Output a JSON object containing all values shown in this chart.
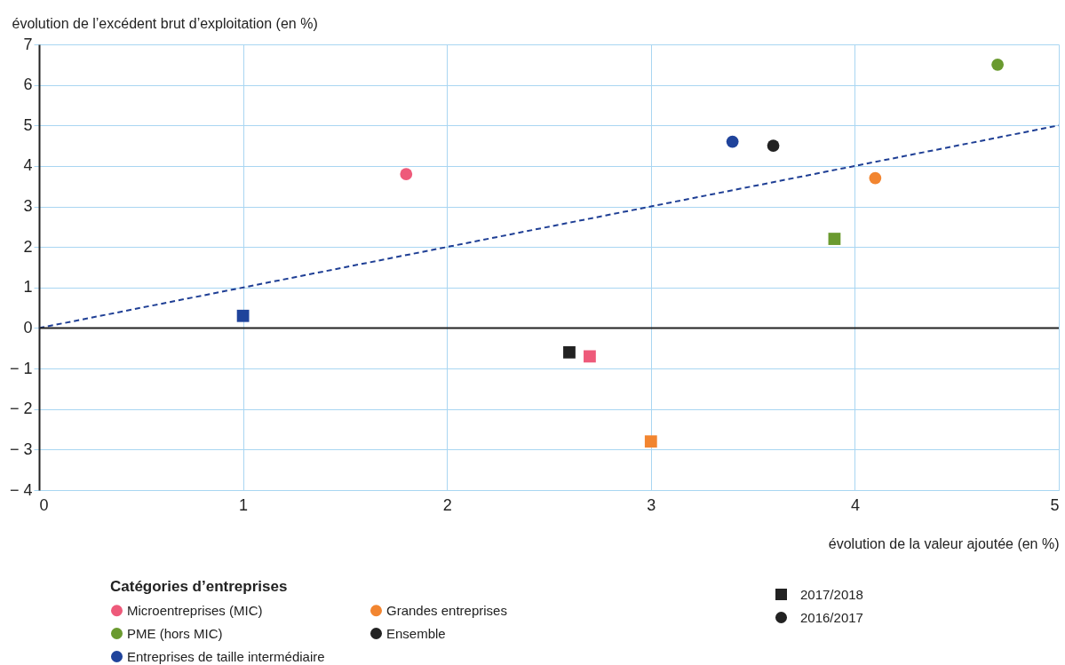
{
  "chart_data": {
    "type": "scatter",
    "xlabel": "évolution de la valeur ajoutée (en %)",
    "ylabel": "évolution de l’excédent brut d’exploitation (en %)",
    "legend_title": "Catégories d’entreprises",
    "series": [
      {
        "name": "Microentreprises (MIC)",
        "type": "scatter",
        "color": "#ee5a7a"
      },
      {
        "name": "PME (hors MIC)",
        "type": "scatter",
        "color": "#6a9a2f"
      },
      {
        "name": "Entreprises de taille intermédiaire",
        "type": "scatter",
        "color": "#1f439b"
      },
      {
        "name": "Grandes entreprises",
        "type": "scatter",
        "color": "#f28530"
      },
      {
        "name": "Ensemble",
        "type": "scatter",
        "color": "#222222"
      },
      {
        "name": "2017/2018",
        "marker": "square",
        "colors": [
          "#ee5a7a",
          "#f28530",
          "#6a9a2f",
          "#222222",
          "#1f439b"
        ],
        "x": [
          2.7,
          3.0,
          3.9,
          2.6,
          1.0
        ],
        "values": [
          -0.7,
          -2.8,
          2.2,
          -0.6,
          0.3
        ]
      },
      {
        "name": "2016/2017",
        "marker": "circle",
        "colors": [
          "#ee5a7a",
          "#f28530",
          "#6a9a2f",
          "#222222",
          "#1f439b"
        ],
        "x": [
          1.8,
          4.1,
          4.7,
          3.6,
          3.4
        ],
        "values": [
          3.8,
          3.7,
          6.5,
          4.5,
          4.6
        ]
      },
      {
        "type": "line",
        "color": "#1f3f95",
        "line_style": "dashed",
        "x": [
          0,
          5
        ],
        "values": [
          0,
          5
        ]
      }
    ],
    "xlim": [
      0,
      5
    ],
    "xticks": [
      0,
      1,
      2,
      3,
      4,
      5
    ],
    "ylim": [
      -4,
      7
    ],
    "yticks": [
      {
        "value": -4,
        "label": "− 4"
      },
      {
        "value": -3,
        "label": "− 3"
      },
      {
        "value": -2,
        "label": "− 2"
      },
      {
        "value": -1,
        "label": "− 1"
      },
      0,
      1,
      2,
      3,
      4,
      5,
      6,
      7
    ],
    "ref_lines": [
      {
        "axis": "y",
        "value": 0,
        "color": "#222222"
      }
    ],
    "grid": true,
    "legend": "bottom"
  }
}
